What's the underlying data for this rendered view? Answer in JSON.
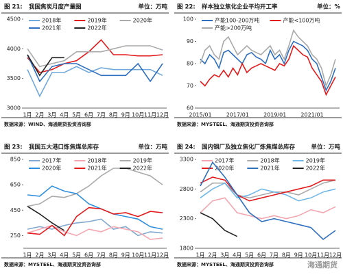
{
  "chart_data": [
    {
      "type": "line",
      "figure_label": "图 21:",
      "title": "我国焦炭月度产量图",
      "unit": "单位：万吨",
      "source": "数据来源：WIND、海通期货投资咨询部",
      "categories": [
        "1月",
        "2月",
        "3月",
        "4月",
        "5月",
        "6月",
        "7月",
        "8月",
        "9月",
        "10月",
        "11月",
        "12月"
      ],
      "ylim": [
        3000,
        4500
      ],
      "yticks": [
        3000,
        3500,
        4000,
        4500
      ],
      "series": [
        {
          "name": "2018年",
          "color": "#6fa8dc",
          "values": [
            3650,
            3200,
            3600,
            3600,
            3700,
            3600,
            3680,
            3650,
            3650,
            3650,
            3650,
            3550
          ]
        },
        {
          "name": "2019年",
          "color": "#e31a1c",
          "values": [
            3850,
            3600,
            3650,
            3750,
            3800,
            3950,
            4150,
            3900,
            3900,
            3880,
            3880,
            3900
          ]
        },
        {
          "name": "2020年",
          "color": "#aaaaaa",
          "values": [
            4000,
            3700,
            3750,
            3800,
            3950,
            3950,
            3950,
            4000,
            4050,
            4050,
            4050,
            3980
          ]
        },
        {
          "name": "2021年",
          "color": "#2f6fbf",
          "values": [
            3900,
            3450,
            3700,
            3750,
            3750,
            3650,
            3550,
            3550,
            3550,
            3750,
            3450,
            3750
          ]
        },
        {
          "name": "2022年",
          "color": "#222222",
          "values": [
            3900,
            3550,
            3850,
            3850,
            null,
            null,
            null,
            null,
            null,
            null,
            null,
            null
          ]
        }
      ]
    },
    {
      "type": "line",
      "figure_label": "图 22:",
      "title": "样本独立焦化企业平均开工率",
      "unit": "单位：%",
      "source": "数据来源：MYSTEEL、海通期货投资咨询部",
      "categories": [
        "2015/01",
        null,
        null,
        null,
        null,
        null,
        null,
        null,
        "2017/01",
        null,
        null,
        null,
        null,
        null,
        null,
        null,
        "2019/01",
        null,
        null,
        null,
        null,
        null,
        null,
        null,
        "2021/01",
        null,
        null,
        null,
        null,
        null
      ],
      "ylim": [
        60,
        100
      ],
      "yticks": [
        60,
        70,
        80,
        90,
        100
      ],
      "series": [
        {
          "name": "产能100-200万吨",
          "color": "#2f6fbf",
          "values": [
            82,
            80,
            84,
            82,
            78,
            85,
            86,
            84,
            82,
            80,
            84,
            85,
            83,
            82,
            80,
            86,
            82,
            84,
            80,
            86,
            90,
            89,
            88,
            86,
            82,
            80,
            74,
            68,
            72,
            78
          ]
        },
        {
          "name": "产能<100万吨",
          "color": "#e31a1c",
          "values": [
            72,
            70,
            73,
            75,
            74,
            77,
            74,
            78,
            75,
            80,
            76,
            78,
            79,
            80,
            79,
            78,
            77,
            80,
            79,
            82,
            88,
            86,
            84,
            83,
            78,
            75,
            72,
            66,
            70,
            74
          ]
        },
        {
          "name": "产能>200万吨",
          "color": "#aaaaaa",
          "values": [
            80,
            86,
            88,
            84,
            82,
            90,
            92,
            88,
            84,
            86,
            88,
            86,
            85,
            84,
            86,
            88,
            84,
            86,
            82,
            88,
            95,
            92,
            90,
            88,
            84,
            82,
            78,
            70,
            75,
            82
          ]
        }
      ]
    },
    {
      "type": "line",
      "figure_label": "图 23:",
      "title": "我国五大港口炼焦煤总库存",
      "unit": "单位：万吨",
      "source": "数据来源：MYSTEEL、海通期货投资咨询部",
      "categories": [
        "1月",
        "2月",
        "3月",
        "4月",
        "5月",
        "6月",
        "7月",
        "8月",
        "9月",
        "10月",
        "11月",
        "12月"
      ],
      "ylim": [
        150,
        850
      ],
      "yticks": [
        250,
        450,
        650,
        850
      ],
      "series": [
        {
          "name": "2017年",
          "color": "#7fa7cf",
          "values": [
            300,
            320,
            300,
            330,
            350,
            360,
            380,
            300,
            320,
            250,
            280,
            270
          ]
        },
        {
          "name": "2018年",
          "color": "#f4a6b0",
          "values": [
            270,
            300,
            330,
            280,
            250,
            300,
            280,
            320,
            300,
            280,
            220,
            230
          ]
        },
        {
          "name": "2019年",
          "color": "#aaaaaa",
          "values": [
            480,
            500,
            560,
            550,
            580,
            640,
            720,
            780,
            780,
            750,
            720,
            650
          ]
        },
        {
          "name": "2020年",
          "color": "#2f8fdf",
          "values": [
            570,
            560,
            640,
            600,
            580,
            500,
            460,
            420,
            400,
            380,
            320,
            300
          ]
        },
        {
          "name": "2021年",
          "color": "#e31a1c",
          "values": [
            270,
            260,
            330,
            250,
            400,
            470,
            460,
            420,
            430,
            400,
            440,
            430
          ]
        },
        {
          "name": "2022年",
          "color": "#222222",
          "values": [
            480,
            420,
            350,
            290,
            null,
            null,
            null,
            null,
            null,
            null,
            null,
            null
          ]
        }
      ]
    },
    {
      "type": "line",
      "figure_label": "图 24:",
      "title": "国内钢厂及独立焦化厂炼焦煤总库存",
      "unit": "单位：万吨",
      "source": "数据来源：MYSTEEL、海通期货投资咨询部",
      "categories": [
        "1月",
        "2月",
        "3月",
        "4月",
        "5月",
        "6月",
        "7月",
        "8月",
        "9月",
        "10月",
        "11月",
        "12月"
      ],
      "ylim": [
        1800,
        3300
      ],
      "yticks": [
        1800,
        2300,
        2800,
        3300
      ],
      "series": [
        {
          "name": "2017年",
          "color": "#f4a6b0",
          "values": [
            2400,
            2600,
            2650,
            2400,
            2350,
            2300,
            2350,
            2300,
            2350,
            2450,
            2400,
            2500
          ]
        },
        {
          "name": "2018年",
          "color": "#aaaaaa",
          "values": [
            2750,
            2900,
            2900,
            2700,
            2650,
            2700,
            2750,
            2750,
            2700,
            2800,
            2900,
            2950
          ]
        },
        {
          "name": "2019年",
          "color": "#6fb7e8",
          "values": [
            2650,
            2800,
            2900,
            2650,
            2700,
            2800,
            2750,
            2700,
            2600,
            2650,
            2750,
            2800
          ]
        },
        {
          "name": "2020年",
          "color": "#e31a1c",
          "values": [
            2900,
            3000,
            2950,
            2700,
            2600,
            2650,
            2700,
            2750,
            2800,
            2850,
            2950,
            2950
          ]
        },
        {
          "name": "2021年",
          "color": "#2f6fbf",
          "values": [
            2850,
            3250,
            3000,
            2700,
            2400,
            2250,
            2300,
            2250,
            2200,
            2150,
            1950,
            2100
          ]
        },
        {
          "name": "2022年",
          "color": "#222222",
          "values": [
            2400,
            2300,
            2100,
            2000,
            null,
            null,
            null,
            null,
            null,
            null,
            null,
            null
          ]
        }
      ]
    }
  ],
  "watermark": "海通期货"
}
